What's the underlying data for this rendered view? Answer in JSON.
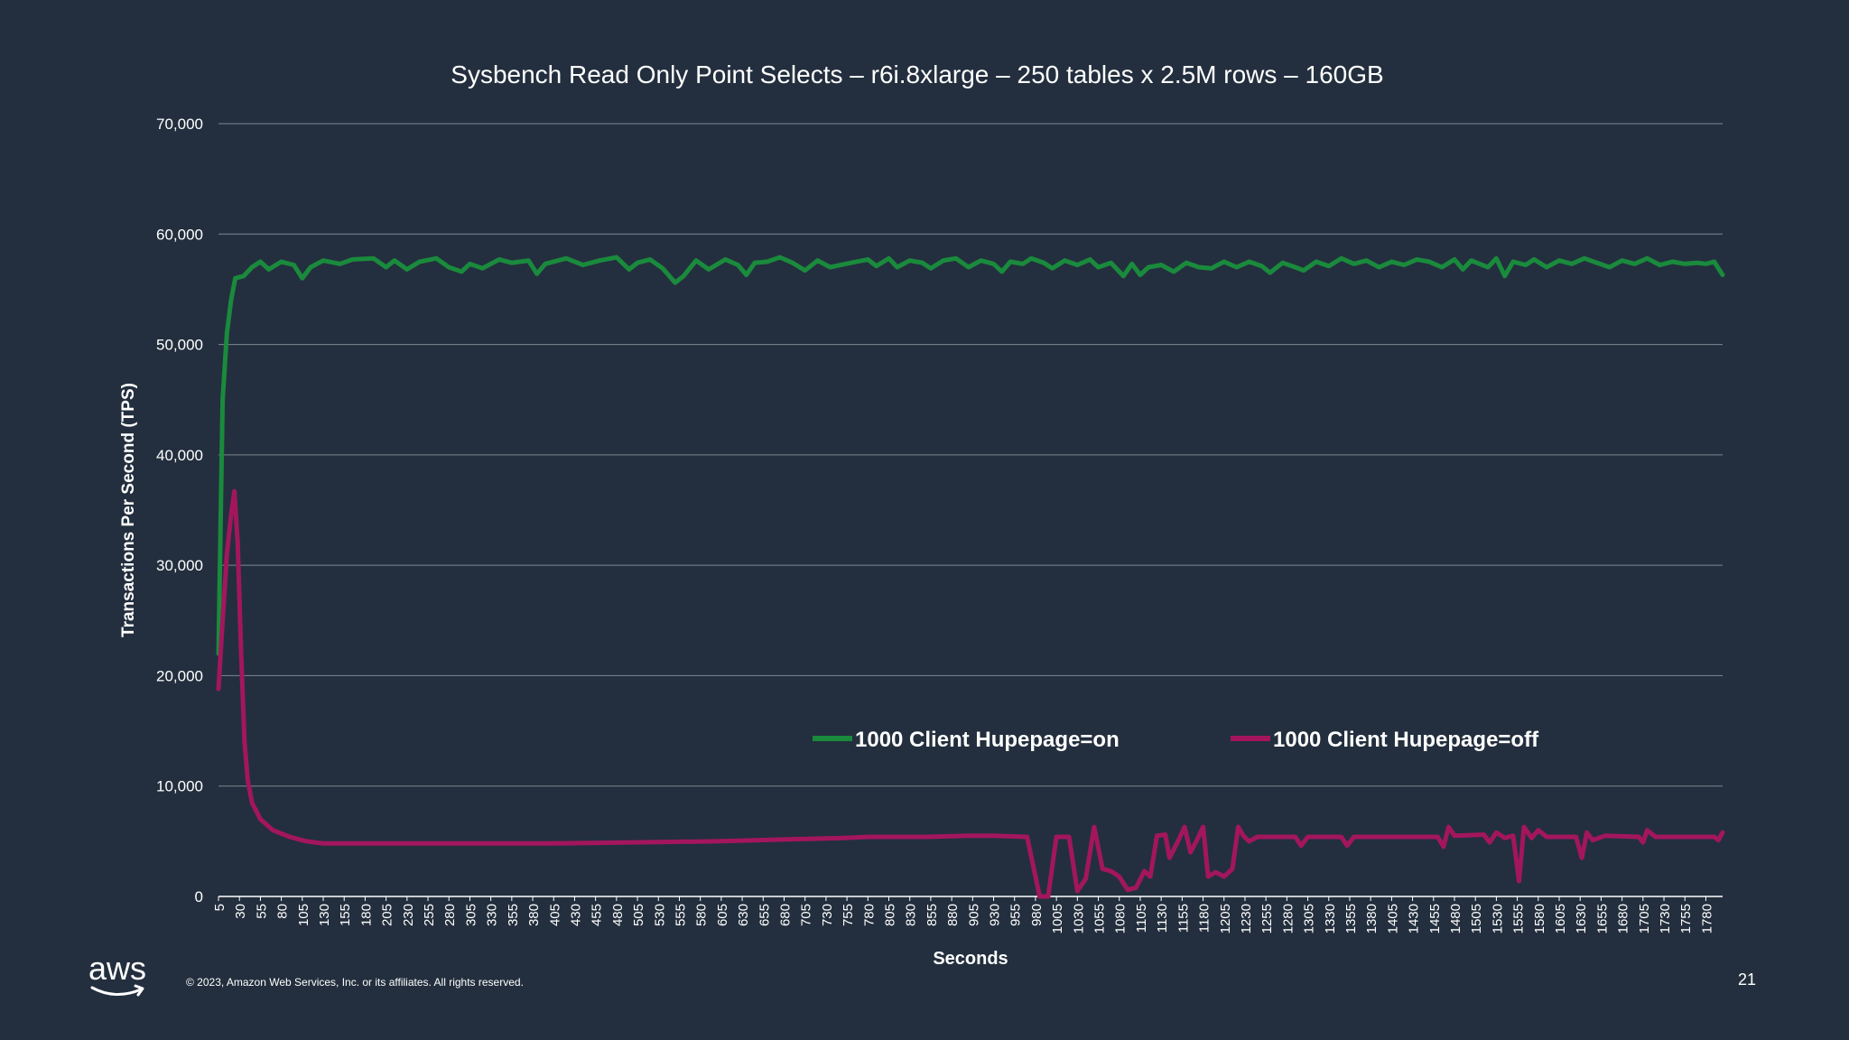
{
  "slide": {
    "copyright": "© 2023, Amazon Web Services, Inc. or its affiliates. All rights reserved.",
    "page_number": "21",
    "logo_text": "aws"
  },
  "chart_data": {
    "type": "line",
    "title": "Sysbench Read Only Point Selects – r6i.8xlarge – 250 tables x 2.5M rows – 160GB",
    "xlabel": "Seconds",
    "ylabel": "Transactions Per Second (TPS)",
    "ylim": [
      0,
      70000
    ],
    "yticks": [
      0,
      10000,
      20000,
      30000,
      40000,
      50000,
      60000,
      70000
    ],
    "ytick_labels": [
      "0",
      "10,000",
      "20,000",
      "30,000",
      "40,000",
      "50,000",
      "60,000",
      "70,000"
    ],
    "xlim": [
      5,
      1800
    ],
    "xtick_labels": [
      "5",
      "30",
      "55",
      "80",
      "105",
      "130",
      "155",
      "180",
      "205",
      "230",
      "255",
      "280",
      "305",
      "330",
      "355",
      "380",
      "405",
      "430",
      "455",
      "480",
      "505",
      "530",
      "555",
      "580",
      "605",
      "630",
      "655",
      "680",
      "705",
      "730",
      "755",
      "780",
      "805",
      "830",
      "855",
      "880",
      "905",
      "930",
      "955",
      "980",
      "1005",
      "1030",
      "1055",
      "1080",
      "1105",
      "1130",
      "1155",
      "1180",
      "1205",
      "1230",
      "1255",
      "1280",
      "1305",
      "1330",
      "1355",
      "1380",
      "1405",
      "1430",
      "1455",
      "1480",
      "1505",
      "1530",
      "1555",
      "1580",
      "1605",
      "1630",
      "1655",
      "1680",
      "1705",
      "1730",
      "1755",
      "1780"
    ],
    "grid": true,
    "legend_position": "lower-center",
    "series": [
      {
        "name": "1000 Client Hupepage=on",
        "color": "#1a8a3c",
        "points": [
          [
            5,
            22000
          ],
          [
            10,
            45000
          ],
          [
            15,
            51000
          ],
          [
            20,
            54000
          ],
          [
            25,
            56000
          ],
          [
            35,
            56200
          ],
          [
            45,
            57000
          ],
          [
            55,
            57500
          ],
          [
            65,
            56800
          ],
          [
            80,
            57500
          ],
          [
            95,
            57200
          ],
          [
            105,
            56000
          ],
          [
            115,
            57000
          ],
          [
            130,
            57600
          ],
          [
            150,
            57300
          ],
          [
            165,
            57700
          ],
          [
            190,
            57800
          ],
          [
            205,
            57000
          ],
          [
            215,
            57600
          ],
          [
            230,
            56800
          ],
          [
            245,
            57500
          ],
          [
            265,
            57800
          ],
          [
            280,
            57000
          ],
          [
            295,
            56600
          ],
          [
            305,
            57300
          ],
          [
            320,
            56900
          ],
          [
            340,
            57700
          ],
          [
            355,
            57400
          ],
          [
            375,
            57600
          ],
          [
            385,
            56400
          ],
          [
            395,
            57300
          ],
          [
            420,
            57800
          ],
          [
            440,
            57200
          ],
          [
            460,
            57600
          ],
          [
            480,
            57900
          ],
          [
            495,
            56800
          ],
          [
            505,
            57400
          ],
          [
            520,
            57700
          ],
          [
            535,
            56900
          ],
          [
            550,
            55600
          ],
          [
            560,
            56200
          ],
          [
            575,
            57600
          ],
          [
            590,
            56800
          ],
          [
            610,
            57700
          ],
          [
            625,
            57200
          ],
          [
            635,
            56300
          ],
          [
            645,
            57400
          ],
          [
            660,
            57500
          ],
          [
            675,
            57900
          ],
          [
            690,
            57400
          ],
          [
            705,
            56700
          ],
          [
            720,
            57600
          ],
          [
            735,
            57000
          ],
          [
            760,
            57400
          ],
          [
            780,
            57700
          ],
          [
            790,
            57100
          ],
          [
            805,
            57800
          ],
          [
            815,
            57000
          ],
          [
            830,
            57600
          ],
          [
            845,
            57400
          ],
          [
            855,
            56900
          ],
          [
            870,
            57600
          ],
          [
            885,
            57800
          ],
          [
            900,
            57000
          ],
          [
            915,
            57600
          ],
          [
            930,
            57300
          ],
          [
            940,
            56600
          ],
          [
            950,
            57500
          ],
          [
            965,
            57300
          ],
          [
            975,
            57800
          ],
          [
            990,
            57400
          ],
          [
            1000,
            56900
          ],
          [
            1015,
            57600
          ],
          [
            1030,
            57200
          ],
          [
            1045,
            57700
          ],
          [
            1055,
            57000
          ],
          [
            1070,
            57400
          ],
          [
            1085,
            56200
          ],
          [
            1095,
            57300
          ],
          [
            1105,
            56300
          ],
          [
            1115,
            57000
          ],
          [
            1130,
            57200
          ],
          [
            1145,
            56600
          ],
          [
            1160,
            57400
          ],
          [
            1175,
            57000
          ],
          [
            1190,
            56900
          ],
          [
            1205,
            57500
          ],
          [
            1220,
            57000
          ],
          [
            1235,
            57500
          ],
          [
            1250,
            57100
          ],
          [
            1260,
            56500
          ],
          [
            1275,
            57400
          ],
          [
            1290,
            57000
          ],
          [
            1300,
            56700
          ],
          [
            1315,
            57500
          ],
          [
            1330,
            57100
          ],
          [
            1345,
            57800
          ],
          [
            1360,
            57300
          ],
          [
            1375,
            57600
          ],
          [
            1390,
            57000
          ],
          [
            1405,
            57500
          ],
          [
            1420,
            57200
          ],
          [
            1435,
            57700
          ],
          [
            1450,
            57500
          ],
          [
            1465,
            57000
          ],
          [
            1480,
            57700
          ],
          [
            1490,
            56800
          ],
          [
            1500,
            57600
          ],
          [
            1510,
            57300
          ],
          [
            1520,
            57000
          ],
          [
            1530,
            57800
          ],
          [
            1540,
            56200
          ],
          [
            1550,
            57500
          ],
          [
            1565,
            57200
          ],
          [
            1575,
            57700
          ],
          [
            1590,
            57000
          ],
          [
            1605,
            57600
          ],
          [
            1620,
            57300
          ],
          [
            1635,
            57800
          ],
          [
            1650,
            57400
          ],
          [
            1665,
            57000
          ],
          [
            1680,
            57600
          ],
          [
            1695,
            57300
          ],
          [
            1710,
            57800
          ],
          [
            1725,
            57200
          ],
          [
            1740,
            57500
          ],
          [
            1755,
            57300
          ],
          [
            1770,
            57400
          ],
          [
            1780,
            57300
          ],
          [
            1790,
            57500
          ],
          [
            1800,
            56300
          ]
        ]
      },
      {
        "name": "1000 Client Hupepage=off",
        "color": "#a3165e",
        "points": [
          [
            5,
            18800
          ],
          [
            10,
            25000
          ],
          [
            15,
            31000
          ],
          [
            20,
            34500
          ],
          [
            24,
            36700
          ],
          [
            28,
            32000
          ],
          [
            32,
            22000
          ],
          [
            36,
            14000
          ],
          [
            40,
            10500
          ],
          [
            45,
            8500
          ],
          [
            55,
            7000
          ],
          [
            70,
            6000
          ],
          [
            90,
            5400
          ],
          [
            110,
            5000
          ],
          [
            130,
            4800
          ],
          [
            200,
            4800
          ],
          [
            300,
            4800
          ],
          [
            400,
            4800
          ],
          [
            500,
            4900
          ],
          [
            600,
            5000
          ],
          [
            650,
            5100
          ],
          [
            700,
            5200
          ],
          [
            750,
            5300
          ],
          [
            780,
            5400
          ],
          [
            850,
            5400
          ],
          [
            900,
            5500
          ],
          [
            930,
            5500
          ],
          [
            970,
            5400
          ],
          [
            985,
            0
          ],
          [
            995,
            0
          ],
          [
            1005,
            5400
          ],
          [
            1020,
            5400
          ],
          [
            1030,
            500
          ],
          [
            1040,
            1600
          ],
          [
            1050,
            6300
          ],
          [
            1060,
            2500
          ],
          [
            1070,
            2300
          ],
          [
            1080,
            1800
          ],
          [
            1090,
            600
          ],
          [
            1100,
            800
          ],
          [
            1110,
            2300
          ],
          [
            1117,
            1800
          ],
          [
            1125,
            5500
          ],
          [
            1135,
            5600
          ],
          [
            1140,
            3500
          ],
          [
            1150,
            5000
          ],
          [
            1158,
            6300
          ],
          [
            1165,
            4000
          ],
          [
            1172,
            5000
          ],
          [
            1180,
            6300
          ],
          [
            1186,
            1800
          ],
          [
            1195,
            2200
          ],
          [
            1205,
            1800
          ],
          [
            1215,
            2500
          ],
          [
            1222,
            6300
          ],
          [
            1228,
            5500
          ],
          [
            1235,
            5000
          ],
          [
            1245,
            5400
          ],
          [
            1290,
            5400
          ],
          [
            1297,
            4600
          ],
          [
            1305,
            5400
          ],
          [
            1345,
            5400
          ],
          [
            1352,
            4600
          ],
          [
            1360,
            5400
          ],
          [
            1460,
            5400
          ],
          [
            1467,
            4500
          ],
          [
            1473,
            6300
          ],
          [
            1480,
            5500
          ],
          [
            1515,
            5600
          ],
          [
            1522,
            4900
          ],
          [
            1530,
            5800
          ],
          [
            1540,
            5300
          ],
          [
            1550,
            5500
          ],
          [
            1557,
            1400
          ],
          [
            1563,
            6300
          ],
          [
            1572,
            5300
          ],
          [
            1580,
            6000
          ],
          [
            1590,
            5400
          ],
          [
            1625,
            5400
          ],
          [
            1632,
            3500
          ],
          [
            1638,
            5800
          ],
          [
            1645,
            5100
          ],
          [
            1660,
            5500
          ],
          [
            1700,
            5400
          ],
          [
            1705,
            4900
          ],
          [
            1710,
            6000
          ],
          [
            1720,
            5400
          ],
          [
            1790,
            5400
          ],
          [
            1795,
            5100
          ],
          [
            1800,
            5800
          ]
        ]
      }
    ]
  }
}
